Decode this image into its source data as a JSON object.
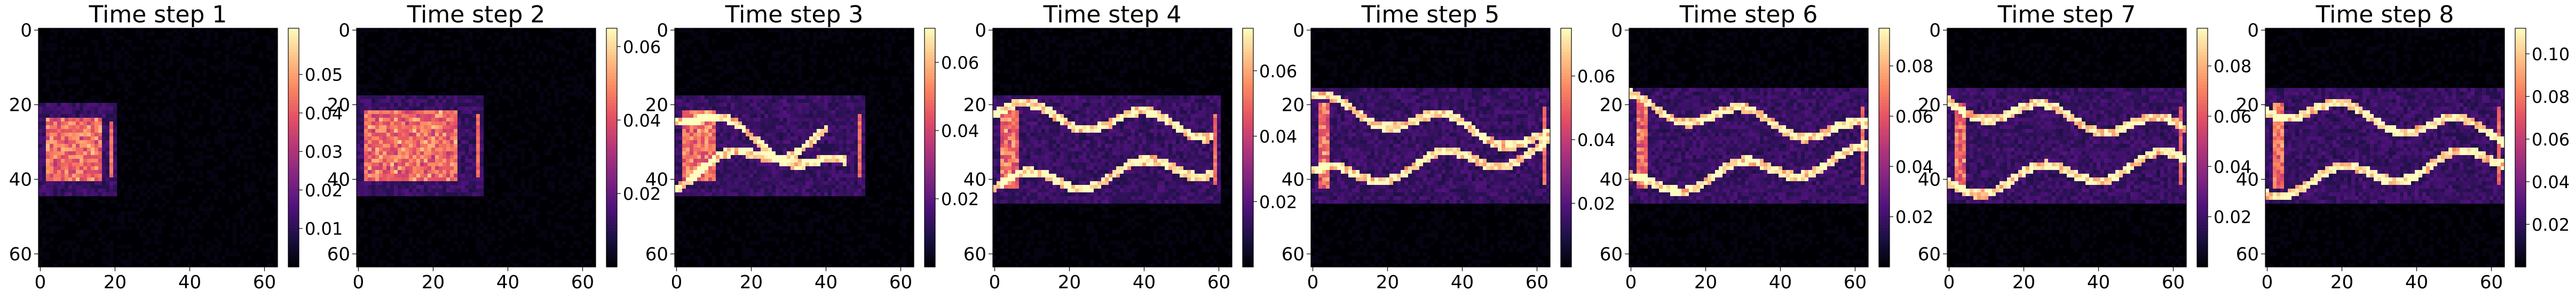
{
  "chart_data": [
    {
      "type": "heatmap",
      "title": "Time step 1",
      "xlim": [
        0,
        63
      ],
      "ylim": [
        0,
        63
      ],
      "xticks": [
        "0",
        "20",
        "40",
        "60"
      ],
      "yticks": [
        "0",
        "20",
        "40",
        "60"
      ],
      "colormap": "magma",
      "colorbar": {
        "min": 0.0,
        "max": 0.062,
        "ticks": [
          "0.01",
          "0.02",
          "0.03",
          "0.04",
          "0.05"
        ]
      },
      "feature": {
        "core_x": [
          2,
          16
        ],
        "core_y": [
          24,
          40
        ],
        "stripes": [
          [
            0,
            0,
            0
          ],
          [
            0,
            0,
            0
          ]
        ],
        "max_x": 20
      }
    },
    {
      "type": "heatmap",
      "title": "Time step 2",
      "xlim": [
        0,
        63
      ],
      "ylim": [
        0,
        63
      ],
      "xticks": [
        "0",
        "20",
        "40",
        "60"
      ],
      "yticks": [
        "0",
        "20",
        "40",
        "60"
      ],
      "colormap": "magma",
      "colorbar": {
        "min": 0.0,
        "max": 0.065,
        "ticks": [
          "0.02",
          "0.04",
          "0.06"
        ]
      },
      "feature": {
        "core_x": [
          2,
          26
        ],
        "core_y": [
          22,
          40
        ],
        "stripes": [
          [
            0,
            0,
            0
          ],
          [
            0,
            0,
            0
          ]
        ],
        "max_x": 33
      }
    },
    {
      "type": "heatmap",
      "title": "Time step 3",
      "xlim": [
        0,
        63
      ],
      "ylim": [
        0,
        63
      ],
      "xticks": [
        "0",
        "20",
        "40",
        "60"
      ],
      "yticks": [
        "0",
        "20",
        "40",
        "60"
      ],
      "colormap": "magma",
      "colorbar": {
        "min": 0.0,
        "max": 0.07,
        "ticks": [
          "0.02",
          "0.04",
          "0.06"
        ]
      },
      "feature": {
        "core_x": [
          2,
          10
        ],
        "core_y": [
          22,
          40
        ],
        "stripes": [
          [
            22,
            38,
            45
          ],
          [
            40,
            28,
            40
          ]
        ],
        "max_x": 50
      }
    },
    {
      "type": "heatmap",
      "title": "Time step 4",
      "xlim": [
        0,
        63
      ],
      "ylim": [
        0,
        63
      ],
      "xticks": [
        "0",
        "20",
        "40",
        "60"
      ],
      "yticks": [
        "0",
        "20",
        "40",
        "60"
      ],
      "colormap": "magma",
      "colorbar": {
        "min": 0.0,
        "max": 0.073,
        "ticks": [
          "0.02",
          "0.04",
          "0.06"
        ]
      },
      "feature": {
        "core_x": [
          2,
          6
        ],
        "core_y": [
          22,
          42
        ],
        "stripes": [
          [
            22,
            26,
            58
          ],
          [
            42,
            36,
            58
          ]
        ],
        "max_x": 60
      }
    },
    {
      "type": "heatmap",
      "title": "Time step 5",
      "xlim": [
        0,
        63
      ],
      "ylim": [
        0,
        63
      ],
      "xticks": [
        "0",
        "20",
        "40",
        "60"
      ],
      "yticks": [
        "0",
        "20",
        "40",
        "60"
      ],
      "colormap": "magma",
      "colorbar": {
        "min": 0.0,
        "max": 0.075,
        "ticks": [
          "0.02",
          "0.04",
          "0.06"
        ]
      },
      "feature": {
        "core_x": [
          2,
          4
        ],
        "core_y": [
          20,
          42
        ],
        "stripes": [
          [
            20,
            30,
            63
          ],
          [
            40,
            32,
            63
          ]
        ],
        "max_x": 63
      }
    },
    {
      "type": "heatmap",
      "title": "Time step 6",
      "xlim": [
        0,
        63
      ],
      "ylim": [
        0,
        63
      ],
      "xticks": [
        "0",
        "20",
        "40",
        "60"
      ],
      "yticks": [
        "0",
        "20",
        "40",
        "60"
      ],
      "colormap": "magma",
      "colorbar": {
        "min": 0.0,
        "max": 0.095,
        "ticks": [
          "0.02",
          "0.04",
          "0.06",
          "0.08"
        ]
      },
      "feature": {
        "core_x": [
          2,
          4
        ],
        "core_y": [
          20,
          42
        ],
        "stripes": [
          [
            20,
            28,
            63
          ],
          [
            42,
            34,
            63
          ]
        ],
        "max_x": 63
      }
    },
    {
      "type": "heatmap",
      "title": "Time step 7",
      "xlim": [
        0,
        63
      ],
      "ylim": [
        0,
        63
      ],
      "xticks": [
        "0",
        "20",
        "40",
        "60"
      ],
      "yticks": [
        "0",
        "20",
        "40",
        "60"
      ],
      "colormap": "magma",
      "colorbar": {
        "min": 0.0,
        "max": 0.095,
        "ticks": [
          "0.02",
          "0.04",
          "0.06",
          "0.08"
        ]
      },
      "feature": {
        "core_x": [
          2,
          4
        ],
        "core_y": [
          20,
          42
        ],
        "stripes": [
          [
            20,
            27,
            63
          ],
          [
            42,
            35,
            63
          ]
        ],
        "max_x": 63
      }
    },
    {
      "type": "heatmap",
      "title": "Time step 8",
      "xlim": [
        0,
        63
      ],
      "ylim": [
        0,
        63
      ],
      "xticks": [
        "0",
        "20",
        "40",
        "60"
      ],
      "yticks": [
        "0",
        "20",
        "40",
        "60"
      ],
      "colormap": "magma",
      "colorbar": {
        "min": 0.0,
        "max": 0.112,
        "ticks": [
          "0.02",
          "0.04",
          "0.06",
          "0.08",
          "0.10"
        ]
      },
      "feature": {
        "core_x": [
          2,
          4
        ],
        "core_y": [
          20,
          42
        ],
        "stripes": [
          [
            20,
            28,
            63
          ],
          [
            42,
            34,
            63
          ]
        ],
        "max_x": 63
      }
    }
  ]
}
